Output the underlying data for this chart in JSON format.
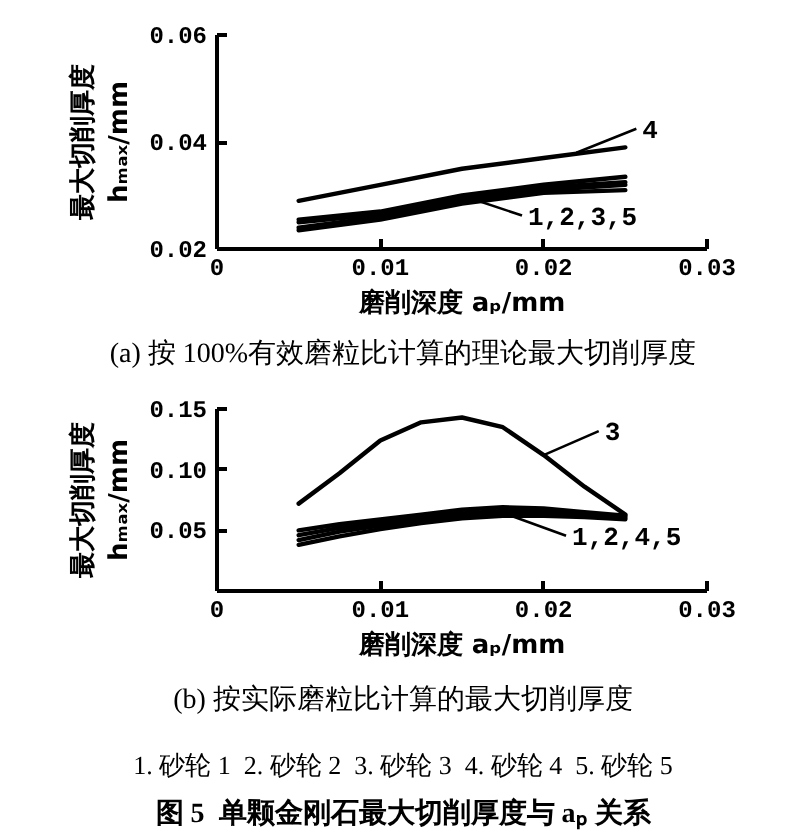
{
  "chart_data": [
    {
      "type": "line",
      "xlabel": "磨削深度 aₚ/mm",
      "ylabel": "最大切削厚度 hₘₐₓ/mm",
      "xlim": [
        0,
        0.03
      ],
      "ylim": [
        0.02,
        0.06
      ],
      "xticks": [
        0,
        0.01,
        0.02,
        0.03
      ],
      "yticks": [
        0.02,
        0.04,
        0.06
      ],
      "x": [
        0.005,
        0.01,
        0.015,
        0.02,
        0.025
      ],
      "series": [
        {
          "color": "#000000",
          "values": [
            0.029,
            0.032,
            0.035,
            0.037,
            0.039
          ]
        },
        {
          "color": "#000000",
          "values": [
            0.0255,
            0.027,
            0.03,
            0.032,
            0.0335
          ]
        },
        {
          "color": "#000000",
          "values": [
            0.025,
            0.0265,
            0.0295,
            0.0315,
            0.0325
          ]
        },
        {
          "color": "#000000",
          "values": [
            0.024,
            0.026,
            0.029,
            0.031,
            0.032
          ]
        },
        {
          "color": "#000000",
          "values": [
            0.0235,
            0.0255,
            0.0285,
            0.0305,
            0.031
          ]
        }
      ],
      "annotations": [
        {
          "text": "4",
          "x": 0.022,
          "y": 0.038
        },
        {
          "text": "1,2,3,5",
          "x": 0.015,
          "y": 0.03
        },
        "(a) 按 100%有效磨粒比计算的理论最大切削厚度"
      ]
    },
    {
      "type": "line",
      "xlabel": "磨削深度 aₚ/mm",
      "ylabel": "最大切削厚度 hₘₐₓ/mm",
      "xlim": [
        0,
        0.03
      ],
      "ylim": [
        0,
        0.15
      ],
      "xticks": [
        0,
        0.01,
        0.02,
        0.03
      ],
      "yticks": [
        0.05,
        {
          "value": 0.1,
          "label": "0.10"
        },
        0.15
      ],
      "x": [
        0.005,
        0.0075,
        0.01,
        0.0125,
        0.015,
        0.0175,
        0.02,
        0.0225,
        0.025
      ],
      "series": [
        {
          "color": "#000000",
          "values": [
            0.072,
            0.097,
            0.124,
            0.139,
            0.143,
            0.135,
            0.112,
            0.086,
            0.063
          ]
        },
        {
          "color": "#000000",
          "values": [
            0.05,
            0.055,
            0.059,
            0.063,
            0.067,
            0.069,
            0.068,
            0.065,
            0.062
          ]
        },
        {
          "color": "#000000",
          "values": [
            0.046,
            0.052,
            0.056,
            0.06,
            0.064,
            0.066,
            0.066,
            0.063,
            0.061
          ]
        },
        {
          "color": "#000000",
          "values": [
            0.042,
            0.049,
            0.054,
            0.058,
            0.062,
            0.064,
            0.064,
            0.062,
            0.06
          ]
        },
        {
          "color": "#000000",
          "values": [
            0.038,
            0.045,
            0.051,
            0.056,
            0.06,
            0.062,
            0.062,
            0.061,
            0.059
          ]
        }
      ],
      "annotations": [
        {
          "text": "3",
          "x": 0.02,
          "y": 0.112
        },
        {
          "text": "1,2,4,5",
          "x": 0.018,
          "y": 0.062
        },
        "(b) 按实际磨粒比计算的最大切削厚度",
        "1. 砂轮 1  2. 砂轮 2  3. 砂轮 3  4. 砂轮 4  5. 砂轮 5",
        "图 5  单颗金刚石最大切削厚度与 aₚ 关系"
      ]
    }
  ]
}
